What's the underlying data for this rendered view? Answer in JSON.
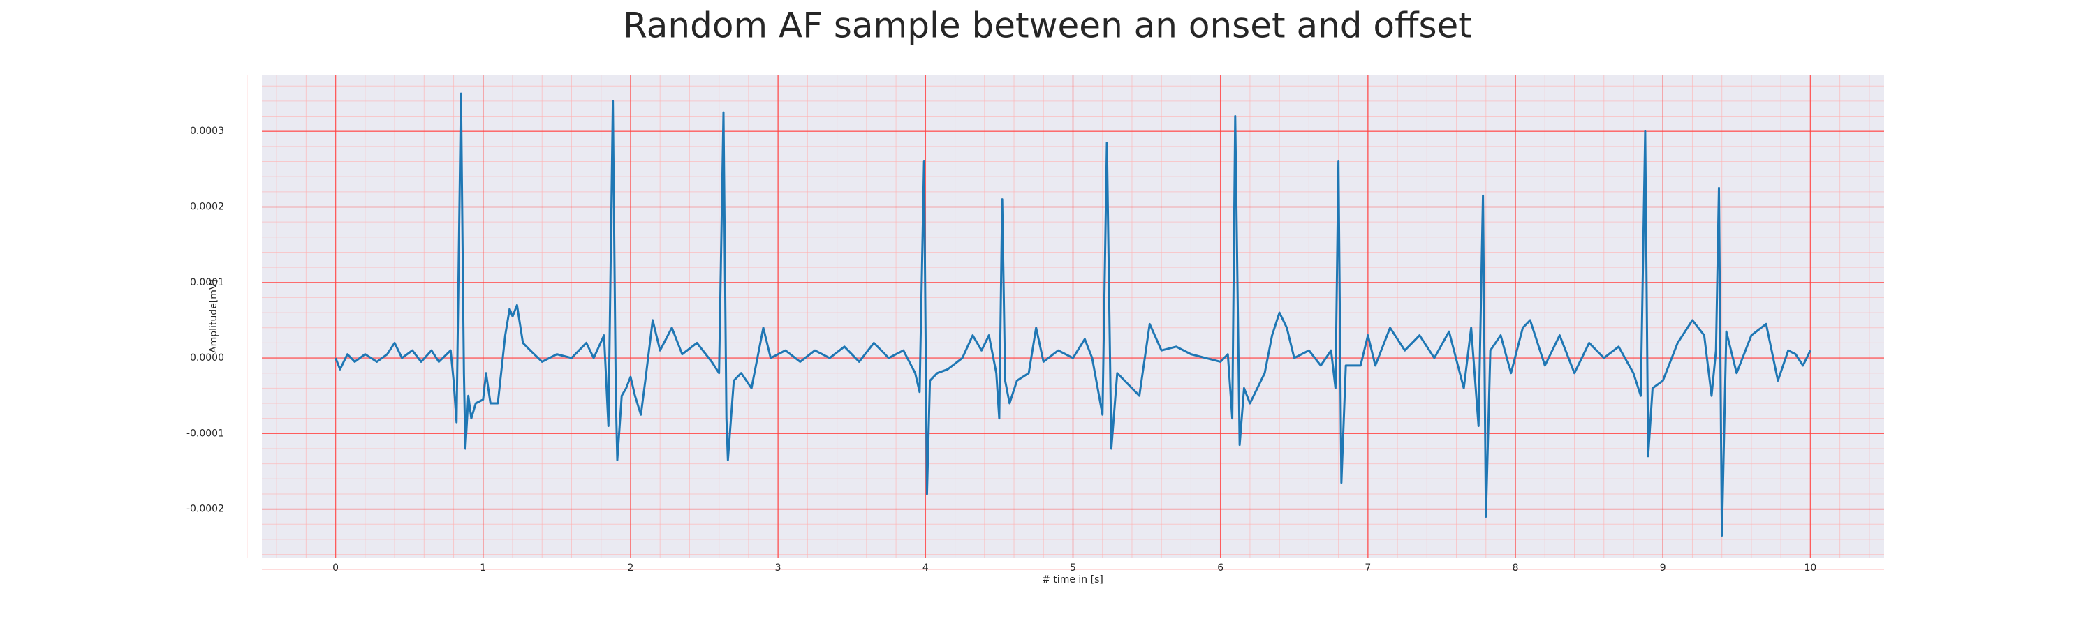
{
  "chart_data": {
    "type": "line",
    "title": "Random AF sample between an onset and offset",
    "xlabel": "# time in [s]",
    "ylabel": "Amplitude[mV]",
    "xlim": [
      -0.5,
      10.5
    ],
    "ylim": [
      -0.000265,
      0.000375
    ],
    "xticks": [
      0,
      1,
      2,
      3,
      4,
      5,
      6,
      7,
      8,
      9,
      10
    ],
    "yticks": [
      -0.0002,
      -0.0001,
      {
        "value": 0,
        "label": "0.0000"
      },
      0.0001,
      0.0002,
      0.0003
    ],
    "grid": true,
    "series": [
      {
        "color": "#1f77b4",
        "x": [
          0,
          0.03,
          0.08,
          0.13,
          0.2,
          0.28,
          0.35,
          0.4,
          0.45,
          0.52,
          0.58,
          0.65,
          0.7,
          0.78,
          0.8,
          0.82,
          0.85,
          0.87,
          0.88,
          0.9,
          0.92,
          0.95,
          1.0,
          1.02,
          1.05,
          1.1,
          1.15,
          1.18,
          1.2,
          1.23,
          1.27,
          1.32,
          1.4,
          1.5,
          1.6,
          1.7,
          1.75,
          1.82,
          1.85,
          1.88,
          1.9,
          1.91,
          1.94,
          1.97,
          2.0,
          2.03,
          2.07,
          2.1,
          2.15,
          2.2,
          2.28,
          2.35,
          2.45,
          2.55,
          2.6,
          2.63,
          2.65,
          2.66,
          2.7,
          2.75,
          2.82,
          2.9,
          2.95,
          3.05,
          3.15,
          3.25,
          3.35,
          3.45,
          3.55,
          3.65,
          3.75,
          3.85,
          3.93,
          3.96,
          3.99,
          4.01,
          4.03,
          4.08,
          4.15,
          4.25,
          4.32,
          4.38,
          4.43,
          4.48,
          4.5,
          4.52,
          4.54,
          4.57,
          4.62,
          4.7,
          4.75,
          4.8,
          4.9,
          5.0,
          5.08,
          5.13,
          5.2,
          5.23,
          5.26,
          5.3,
          5.35,
          5.45,
          5.52,
          5.6,
          5.7,
          5.8,
          5.9,
          6.0,
          6.05,
          6.08,
          6.1,
          6.13,
          6.16,
          6.2,
          6.3,
          6.35,
          6.4,
          6.45,
          6.5,
          6.6,
          6.68,
          6.75,
          6.78,
          6.8,
          6.82,
          6.85,
          6.95,
          7.0,
          7.05,
          7.15,
          7.25,
          7.35,
          7.45,
          7.55,
          7.65,
          7.7,
          7.75,
          7.78,
          7.8,
          7.83,
          7.9,
          7.97,
          8.05,
          8.1,
          8.2,
          8.3,
          8.4,
          8.5,
          8.6,
          8.7,
          8.8,
          8.85,
          8.88,
          8.9,
          8.93,
          9.0,
          9.1,
          9.2,
          9.28,
          9.33,
          9.36,
          9.38,
          9.4,
          9.43,
          9.5,
          9.6,
          9.7,
          9.78,
          9.85,
          9.9,
          9.95,
          10.0
        ],
        "values": [
          0,
          -1.5e-05,
          5e-06,
          -5e-06,
          5e-06,
          -5e-06,
          5e-06,
          2e-05,
          0,
          1e-05,
          -5e-06,
          1e-05,
          -5e-06,
          1e-05,
          -3e-05,
          -8.5e-05,
          0.00035,
          -2e-05,
          -0.00012,
          -5e-05,
          -8e-05,
          -6e-05,
          -5.5e-05,
          -2e-05,
          -6e-05,
          -6e-05,
          3e-05,
          6.5e-05,
          5.5e-05,
          7e-05,
          2e-05,
          1e-05,
          -5e-06,
          5e-06,
          0,
          2e-05,
          0,
          3e-05,
          -9e-05,
          0.00034,
          -5e-05,
          -0.000135,
          -5e-05,
          -4e-05,
          -2.5e-05,
          -5e-05,
          -7.5e-05,
          -3e-05,
          5e-05,
          1e-05,
          4e-05,
          5e-06,
          2e-05,
          -5e-06,
          -2e-05,
          0.000325,
          -8e-05,
          -0.000135,
          -3e-05,
          -2e-05,
          -4e-05,
          4e-05,
          0,
          1e-05,
          -5e-06,
          1e-05,
          0,
          1.5e-05,
          -5e-06,
          2e-05,
          0,
          1e-05,
          -2e-05,
          -4.5e-05,
          0.00026,
          -0.00018,
          -3e-05,
          -2e-05,
          -1.5e-05,
          0,
          3e-05,
          1e-05,
          3e-05,
          -2e-05,
          -8e-05,
          0.00021,
          -3e-05,
          -6e-05,
          -3e-05,
          -2e-05,
          4e-05,
          -5e-06,
          1e-05,
          0,
          2.5e-05,
          0,
          -7.5e-05,
          0.000285,
          -0.00012,
          -2e-05,
          -3e-05,
          -5e-05,
          4.5e-05,
          1e-05,
          1.5e-05,
          5e-06,
          0,
          -5e-06,
          5e-06,
          -8e-05,
          0.00032,
          -0.000115,
          -4e-05,
          -6e-05,
          -2e-05,
          3e-05,
          6e-05,
          4e-05,
          0,
          1e-05,
          -1e-05,
          1e-05,
          -4e-05,
          0.00026,
          -0.000165,
          -1e-05,
          -1e-05,
          3e-05,
          -1e-05,
          4e-05,
          1e-05,
          3e-05,
          0,
          3.5e-05,
          -4e-05,
          4e-05,
          -9e-05,
          0.000215,
          -0.00021,
          1e-05,
          3e-05,
          -2e-05,
          4e-05,
          5e-05,
          -1e-05,
          3e-05,
          -2e-05,
          2e-05,
          0,
          1.5e-05,
          -2e-05,
          -5e-05,
          0.0003,
          -0.00013,
          -4e-05,
          -3e-05,
          2e-05,
          5e-05,
          3e-05,
          -5e-05,
          1e-05,
          0.000225,
          -0.000235,
          3.5e-05,
          -2e-05,
          3e-05,
          4.5e-05,
          -3e-05,
          1e-05,
          5e-06,
          -1e-05,
          1e-05
        ]
      }
    ]
  }
}
